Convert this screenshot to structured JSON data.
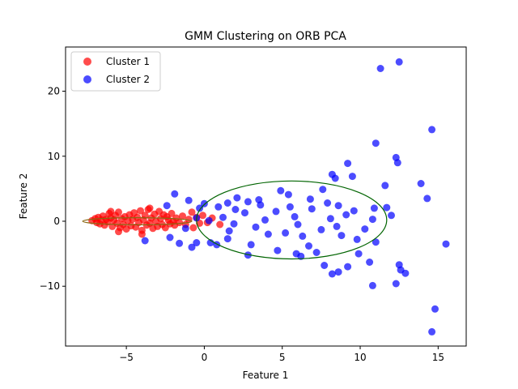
{
  "chart_data": {
    "type": "scatter",
    "title": "GMM Clustering on ORB PCA",
    "xlabel": "Feature 1",
    "ylabel": "Feature 2",
    "xlim": [
      -8.9,
      16.8
    ],
    "ylim": [
      -19.2,
      26.8
    ],
    "xticks": [
      -5,
      0,
      5,
      10,
      15
    ],
    "xtick_labels": [
      "−5",
      "0",
      "5",
      "10",
      "15"
    ],
    "yticks": [
      -10,
      0,
      10,
      20
    ],
    "ytick_labels": [
      "−10",
      "0",
      "10",
      "20"
    ],
    "grid": false,
    "legend_position": "top-left",
    "series": [
      {
        "name": "Cluster 1",
        "color": "#ff0000",
        "points": [
          [
            -7.2,
            0.1
          ],
          [
            -7.0,
            0.4
          ],
          [
            -6.9,
            -0.2
          ],
          [
            -6.8,
            0.6
          ],
          [
            -6.7,
            -0.4
          ],
          [
            -6.6,
            0.2
          ],
          [
            -6.5,
            0.8
          ],
          [
            -6.4,
            -0.6
          ],
          [
            -6.3,
            0.3
          ],
          [
            -6.2,
            -0.1
          ],
          [
            -6.1,
            1.2
          ],
          [
            -6.0,
            0.5
          ],
          [
            -5.9,
            -0.8
          ],
          [
            -5.8,
            0.2
          ],
          [
            -5.7,
            0.9
          ],
          [
            -5.6,
            -0.3
          ],
          [
            -5.5,
            1.4
          ],
          [
            -5.4,
            -1.0
          ],
          [
            -5.3,
            0.4
          ],
          [
            -5.2,
            -0.5
          ],
          [
            -5.1,
            0.7
          ],
          [
            -5.0,
            -1.2
          ],
          [
            -4.9,
            0.1
          ],
          [
            -4.8,
            1.0
          ],
          [
            -4.7,
            -0.7
          ],
          [
            -4.6,
            0.3
          ],
          [
            -4.5,
            1.3
          ],
          [
            -4.4,
            -0.9
          ],
          [
            -4.3,
            0.6
          ],
          [
            -4.2,
            -0.2
          ],
          [
            -4.1,
            1.6
          ],
          [
            -4.0,
            -1.4
          ],
          [
            -3.9,
            0.2
          ],
          [
            -3.8,
            0.9
          ],
          [
            -3.7,
            -0.6
          ],
          [
            -3.6,
            1.8
          ],
          [
            -3.5,
            -0.3
          ],
          [
            -3.4,
            0.5
          ],
          [
            -3.3,
            -1.1
          ],
          [
            -3.2,
            1.1
          ],
          [
            -3.1,
            0.0
          ],
          [
            -3.0,
            -0.8
          ],
          [
            -2.9,
            1.5
          ],
          [
            -2.8,
            0.4
          ],
          [
            -2.7,
            -0.5
          ],
          [
            -2.6,
            1.0
          ],
          [
            -2.5,
            -1.0
          ],
          [
            -2.4,
            0.7
          ],
          [
            -2.3,
            0.2
          ],
          [
            -2.2,
            -0.4
          ],
          [
            -2.1,
            1.2
          ],
          [
            -2.0,
            0.0
          ],
          [
            -1.9,
            -0.6
          ],
          [
            -1.8,
            0.5
          ],
          [
            -1.6,
            -0.2
          ],
          [
            -1.4,
            0.8
          ],
          [
            -1.2,
            -0.5
          ],
          [
            -1.0,
            0.3
          ],
          [
            -0.8,
            1.4
          ],
          [
            -0.7,
            -1.0
          ],
          [
            -0.5,
            0.6
          ],
          [
            -0.3,
            -0.3
          ],
          [
            -0.1,
            0.9
          ],
          [
            0.2,
            -0.2
          ],
          [
            0.5,
            0.5
          ],
          [
            1.0,
            -0.5
          ],
          [
            -4.0,
            -2.0
          ],
          [
            -5.5,
            -1.6
          ],
          [
            -6.0,
            1.5
          ],
          [
            -3.5,
            2.0
          ]
        ]
      },
      {
        "name": "Cluster 2",
        "color": "#0000ff",
        "points": [
          [
            12.5,
            24.5
          ],
          [
            11.3,
            23.5
          ],
          [
            14.6,
            14.1
          ],
          [
            11.0,
            12.0
          ],
          [
            12.3,
            9.8
          ],
          [
            12.4,
            9.0
          ],
          [
            9.2,
            8.9
          ],
          [
            8.2,
            7.2
          ],
          [
            9.5,
            6.9
          ],
          [
            8.4,
            6.6
          ],
          [
            13.9,
            5.8
          ],
          [
            11.6,
            5.5
          ],
          [
            14.3,
            3.5
          ],
          [
            11.7,
            2.1
          ],
          [
            12.0,
            0.9
          ],
          [
            10.8,
            0.3
          ],
          [
            9.1,
            1.0
          ],
          [
            8.6,
            2.4
          ],
          [
            7.6,
            4.9
          ],
          [
            6.8,
            3.4
          ],
          [
            5.4,
            4.1
          ],
          [
            4.9,
            4.7
          ],
          [
            3.5,
            3.3
          ],
          [
            2.8,
            3.0
          ],
          [
            2.1,
            3.6
          ],
          [
            1.5,
            2.8
          ],
          [
            0.9,
            2.2
          ],
          [
            0.0,
            2.7
          ],
          [
            -0.3,
            2.0
          ],
          [
            -1.0,
            3.2
          ],
          [
            -1.9,
            4.2
          ],
          [
            -2.4,
            2.4
          ],
          [
            15.5,
            -3.5
          ],
          [
            14.8,
            -13.5
          ],
          [
            14.6,
            -17.0
          ],
          [
            12.9,
            -8.0
          ],
          [
            12.3,
            -9.6
          ],
          [
            12.6,
            -7.5
          ],
          [
            12.5,
            -6.7
          ],
          [
            10.8,
            -9.9
          ],
          [
            10.6,
            -6.3
          ],
          [
            9.9,
            -5.0
          ],
          [
            9.2,
            -7.0
          ],
          [
            8.2,
            -8.1
          ],
          [
            8.6,
            -7.8
          ],
          [
            7.7,
            -6.8
          ],
          [
            7.2,
            -4.8
          ],
          [
            6.7,
            -3.8
          ],
          [
            6.2,
            -5.4
          ],
          [
            5.9,
            -5.0
          ],
          [
            4.7,
            -4.5
          ],
          [
            3.0,
            -3.6
          ],
          [
            2.8,
            -5.2
          ],
          [
            1.5,
            -2.7
          ],
          [
            0.8,
            -3.6
          ],
          [
            0.4,
            -3.3
          ],
          [
            -0.5,
            -3.3
          ],
          [
            -0.8,
            -4.0
          ],
          [
            -1.6,
            -3.4
          ],
          [
            -2.2,
            -2.5
          ],
          [
            -3.8,
            -3.0
          ],
          [
            -1.2,
            -1.1
          ],
          [
            -0.5,
            0.5
          ],
          [
            0.3,
            0.1
          ],
          [
            1.2,
            0.6
          ],
          [
            1.9,
            -0.4
          ],
          [
            2.6,
            1.3
          ],
          [
            3.3,
            -0.9
          ],
          [
            3.9,
            0.2
          ],
          [
            4.6,
            1.5
          ],
          [
            5.2,
            -1.8
          ],
          [
            5.8,
            0.7
          ],
          [
            6.3,
            -2.3
          ],
          [
            6.9,
            1.9
          ],
          [
            7.5,
            -1.3
          ],
          [
            8.1,
            0.4
          ],
          [
            8.8,
            -2.2
          ],
          [
            9.6,
            1.6
          ],
          [
            10.3,
            -1.2
          ],
          [
            11.0,
            -3.2
          ],
          [
            2.0,
            1.8
          ],
          [
            4.1,
            -2.0
          ],
          [
            6.0,
            -0.5
          ],
          [
            7.9,
            2.8
          ],
          [
            9.8,
            -2.8
          ],
          [
            10.9,
            2.0
          ],
          [
            3.6,
            2.5
          ],
          [
            5.5,
            2.2
          ],
          [
            8.5,
            -0.8
          ],
          [
            1.6,
            -1.5
          ]
        ]
      }
    ],
    "ellipses": [
      {
        "cx": 5.6,
        "cy": 0.2,
        "rx": 6.1,
        "ry": 6.0,
        "color": "#006400"
      },
      {
        "cx": -4.3,
        "cy": 0.0,
        "rx": 3.5,
        "ry": 0.55,
        "color": "#8b6914"
      }
    ]
  }
}
